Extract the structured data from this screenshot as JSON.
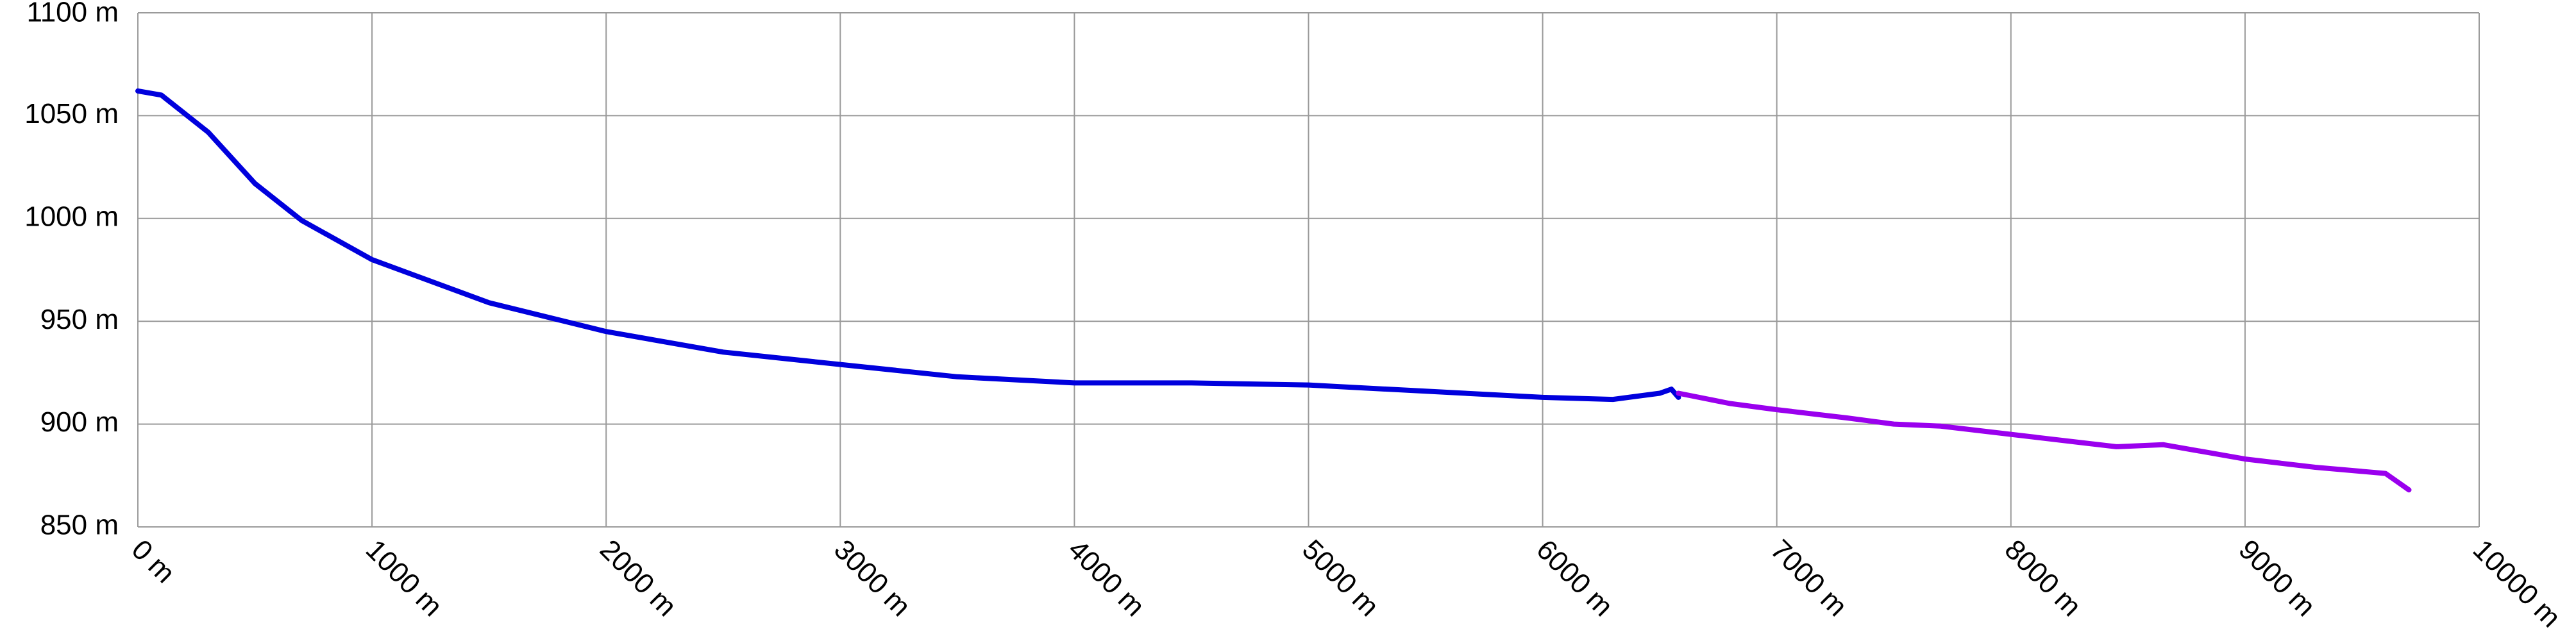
{
  "chart_data": {
    "type": "line",
    "xlim": [
      0,
      10000
    ],
    "xticks": [
      {
        "value": 0,
        "label": "0 m"
      },
      {
        "value": 1000,
        "label": "1000 m"
      },
      {
        "value": 2000,
        "label": "2000 m"
      },
      {
        "value": 3000,
        "label": "3000 m"
      },
      {
        "value": 4000,
        "label": "4000 m"
      },
      {
        "value": 5000,
        "label": "5000 m"
      },
      {
        "value": 6000,
        "label": "6000 m"
      },
      {
        "value": 7000,
        "label": "7000 m"
      },
      {
        "value": 8000,
        "label": "8000 m"
      },
      {
        "value": 9000,
        "label": "9000 m"
      },
      {
        "value": 10000,
        "label": "10000 m"
      }
    ],
    "ylim": [
      850,
      1100
    ],
    "yticks": [
      {
        "value": 850,
        "label": "850 m"
      },
      {
        "value": 900,
        "label": "900 m"
      },
      {
        "value": 950,
        "label": "950 m"
      },
      {
        "value": 1000,
        "label": "1000 m"
      },
      {
        "value": 1050,
        "label": "1050 m"
      },
      {
        "value": 1100,
        "label": "1100 m"
      }
    ],
    "grid": true,
    "series": [
      {
        "color": "#0000dd",
        "x": [
          0,
          100,
          300,
          500,
          700,
          1000,
          1500,
          2000,
          2500,
          3000,
          3500,
          4000,
          4500,
          5000,
          5500,
          6000,
          6300,
          6500,
          6550,
          6580
        ],
        "values": [
          1062,
          1060,
          1042,
          1017,
          999,
          980,
          959,
          945,
          935,
          929,
          923,
          920,
          920,
          919,
          916,
          913,
          912,
          915,
          917,
          913
        ]
      },
      {
        "color": "#9a00ee",
        "x": [
          6580,
          6800,
          7000,
          7300,
          7500,
          7700,
          8000,
          8300,
          8450,
          8650,
          9000,
          9300,
          9600,
          9700
        ],
        "values": [
          915,
          910,
          907,
          903,
          900,
          899,
          895,
          891,
          889,
          890,
          883,
          879,
          876,
          868
        ]
      }
    ]
  }
}
